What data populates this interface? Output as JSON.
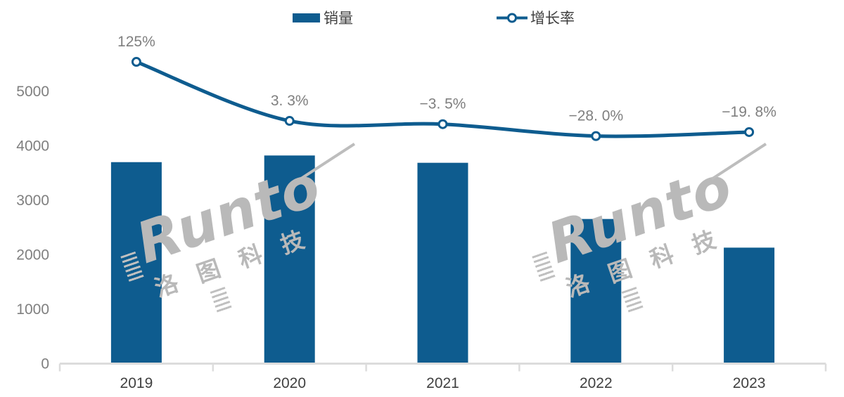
{
  "legend": {
    "sales_label": "销量",
    "growth_label": "增长率"
  },
  "watermark": {
    "latin": "Runto",
    "cjk": "洛图科技"
  },
  "colors": {
    "primary_blue": "#0e5c8f",
    "label_gray": "#7f7f7f",
    "axis_gray": "#dcdcdc",
    "text_dark": "#404040",
    "watermark_gray": "#b9b9b9"
  },
  "chart_data": {
    "type": "bar",
    "subtype": "combo-bar-line",
    "categories": [
      "2019",
      "2020",
      "2021",
      "2022",
      "2023"
    ],
    "series": [
      {
        "name": "销量",
        "type": "bar",
        "axis": "left",
        "values": [
          3700,
          3822,
          3688,
          2656,
          2130
        ]
      },
      {
        "name": "增长率",
        "type": "line",
        "axis": "right-hidden",
        "values": [
          125,
          3.3,
          -3.5,
          -28.0,
          -19.8
        ],
        "point_labels": [
          "125%",
          "3. 3%",
          "−3. 5%",
          "−28. 0%",
          "−19. 8%"
        ]
      }
    ],
    "title": "",
    "xlabel": "",
    "ylabel": "",
    "y_ticks": [
      0,
      1000,
      2000,
      3000,
      4000,
      5000
    ],
    "ylim": [
      0,
      5500
    ],
    "grid": false,
    "legend_position": "top"
  }
}
